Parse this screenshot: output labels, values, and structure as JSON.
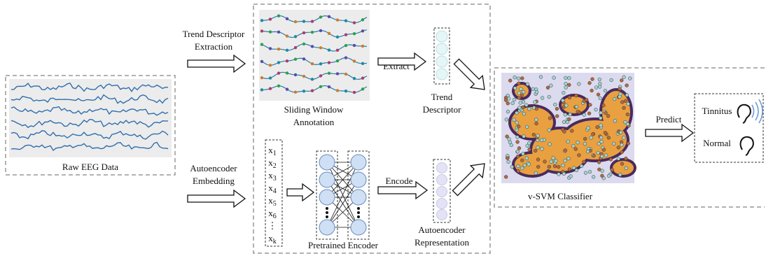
{
  "input": {
    "label": "Raw EEG Data"
  },
  "trend_branch": {
    "step_label": [
      "Trend Descriptor",
      "Extraction"
    ],
    "image_caption": [
      "Sliding Window",
      "Annotation"
    ],
    "arrow_label": "Extract",
    "output_caption": [
      "Trend",
      "Descriptor"
    ]
  },
  "autoencoder_branch": {
    "step_label": [
      "Autoencoder",
      "Embedding"
    ],
    "inputs": [
      [
        "x",
        "1"
      ],
      [
        "x",
        "2"
      ],
      [
        "x",
        "3"
      ],
      [
        "x",
        "4"
      ],
      [
        "x",
        "5"
      ],
      [
        "x",
        "6"
      ],
      [
        "⋮",
        ""
      ],
      [
        "x",
        "k"
      ]
    ],
    "encoder_caption": "Pretrained Encoder",
    "arrow_label": "Encode",
    "output_caption": [
      "Autoencoder",
      "Representation"
    ]
  },
  "classifier": {
    "caption": "v-SVM Classifier",
    "arrow_label": "Predict",
    "outputs": [
      "Tinnitus",
      "Normal"
    ]
  }
}
